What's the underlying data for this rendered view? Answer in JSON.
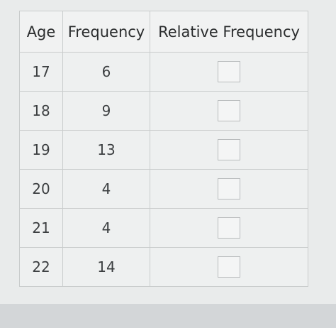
{
  "table": {
    "headers": [
      "Age",
      "Frequency",
      "Relative Frequency"
    ],
    "rows": [
      [
        17,
        6
      ],
      [
        18,
        9
      ],
      [
        19,
        13
      ],
      [
        20,
        4
      ],
      [
        21,
        4
      ],
      [
        22,
        14
      ]
    ]
  }
}
